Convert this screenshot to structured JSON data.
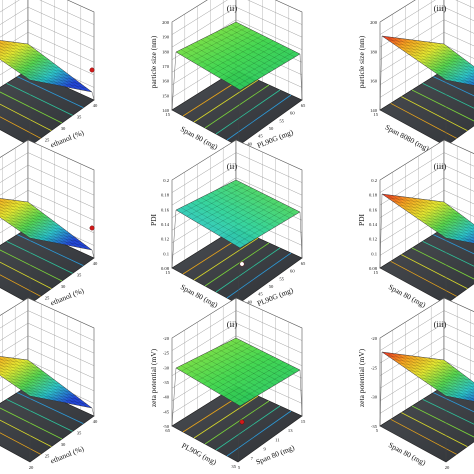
{
  "figure": {
    "panels": [
      {
        "id": "r1c1",
        "row": 0,
        "col": 0,
        "label": "",
        "zlabel": "",
        "xlabel": "ethanol (%)",
        "ylabel": "",
        "zticks": [],
        "xticks": [
          "20",
          "25",
          "30",
          "35",
          "40"
        ],
        "yticks": [
          "65",
          "45"
        ],
        "surface": "tilted",
        "dot": "red"
      },
      {
        "id": "r1c2",
        "row": 0,
        "col": 1,
        "label": "(ii)",
        "zlabel": "particle size (nm)",
        "xlabel": "PL90G (mg)",
        "ylabel": "Span 80 (mg)",
        "zticks": [
          "200",
          "190",
          "180",
          "170",
          "160",
          "150",
          "140"
        ],
        "xticks": [
          "35",
          "40",
          "45",
          "50",
          "55",
          "60",
          "65"
        ],
        "yticks": [
          "15",
          "5"
        ],
        "surface": "flat",
        "dot": ""
      },
      {
        "id": "r1c3",
        "row": 0,
        "col": 2,
        "label": "(iii)",
        "zlabel": "particle size (nm)",
        "xlabel": "",
        "ylabel": "Span 8080 (mg)",
        "zticks": [
          "200",
          "180",
          "160",
          "140"
        ],
        "xticks": [],
        "yticks": [
          "15"
        ],
        "surface": "tilted",
        "dot": ""
      },
      {
        "id": "r2c1",
        "row": 1,
        "col": 0,
        "label": "",
        "zlabel": "",
        "xlabel": "ethanol (%)",
        "ylabel": "",
        "zticks": [],
        "xticks": [
          "20",
          "25",
          "30",
          "35",
          "40"
        ],
        "yticks": [],
        "surface": "tilted",
        "dot": "red"
      },
      {
        "id": "r2c2",
        "row": 1,
        "col": 1,
        "label": "(ii)",
        "zlabel": "PDI",
        "xlabel": "PL90G (mg)",
        "ylabel": "Span 80 (mg)",
        "zticks": [
          "0.2",
          "0.18",
          "0.16",
          "0.14",
          "0.12",
          "0.1",
          "0.08"
        ],
        "xticks": [
          "35",
          "40",
          "45",
          "50",
          "55",
          "60",
          "65"
        ],
        "yticks": [
          "15",
          "5"
        ],
        "surface": "flat",
        "dot": "white"
      },
      {
        "id": "r2c3",
        "row": 1,
        "col": 2,
        "label": "(iii)",
        "zlabel": "PDI",
        "xlabel": "",
        "ylabel": "Span 80 (mg)",
        "zticks": [
          "0.2",
          "0.18",
          "0.16",
          "0.14",
          "0.12",
          "0.1",
          "0.08"
        ],
        "xticks": [],
        "yticks": [
          "15",
          "5"
        ],
        "surface": "tilted",
        "dot": ""
      },
      {
        "id": "r3c1",
        "row": 2,
        "col": 0,
        "label": "",
        "zlabel": "",
        "xlabel": "ethanol (%)",
        "ylabel": "",
        "zticks": [],
        "xticks": [
          "20",
          "25",
          "30",
          "35",
          "40"
        ],
        "yticks": [],
        "surface": "tilted",
        "dot": ""
      },
      {
        "id": "r3c2",
        "row": 2,
        "col": 1,
        "label": "(ii)",
        "zlabel": "zeta potential (mV)",
        "xlabel": "Span 80 (mg)",
        "ylabel": "PL90G (mg)",
        "zticks": [
          "-20",
          "-25",
          "-30",
          "-35",
          "-40",
          "-45",
          "-50"
        ],
        "xticks": [
          "5",
          "7",
          "9",
          "11",
          "13",
          "15"
        ],
        "yticks": [
          "65",
          "35"
        ],
        "surface": "flat",
        "dot": "red"
      },
      {
        "id": "r3c3",
        "row": 2,
        "col": 2,
        "label": "(iii)",
        "zlabel": "zeta potential (mV)",
        "xlabel": "",
        "ylabel": "Span 80 (mg)",
        "zticks": [
          "-20",
          "-25",
          "-30",
          "-35"
        ],
        "xticks": [
          "20",
          "25"
        ],
        "yticks": [
          "5"
        ],
        "surface": "tilted",
        "dot": ""
      }
    ]
  }
}
